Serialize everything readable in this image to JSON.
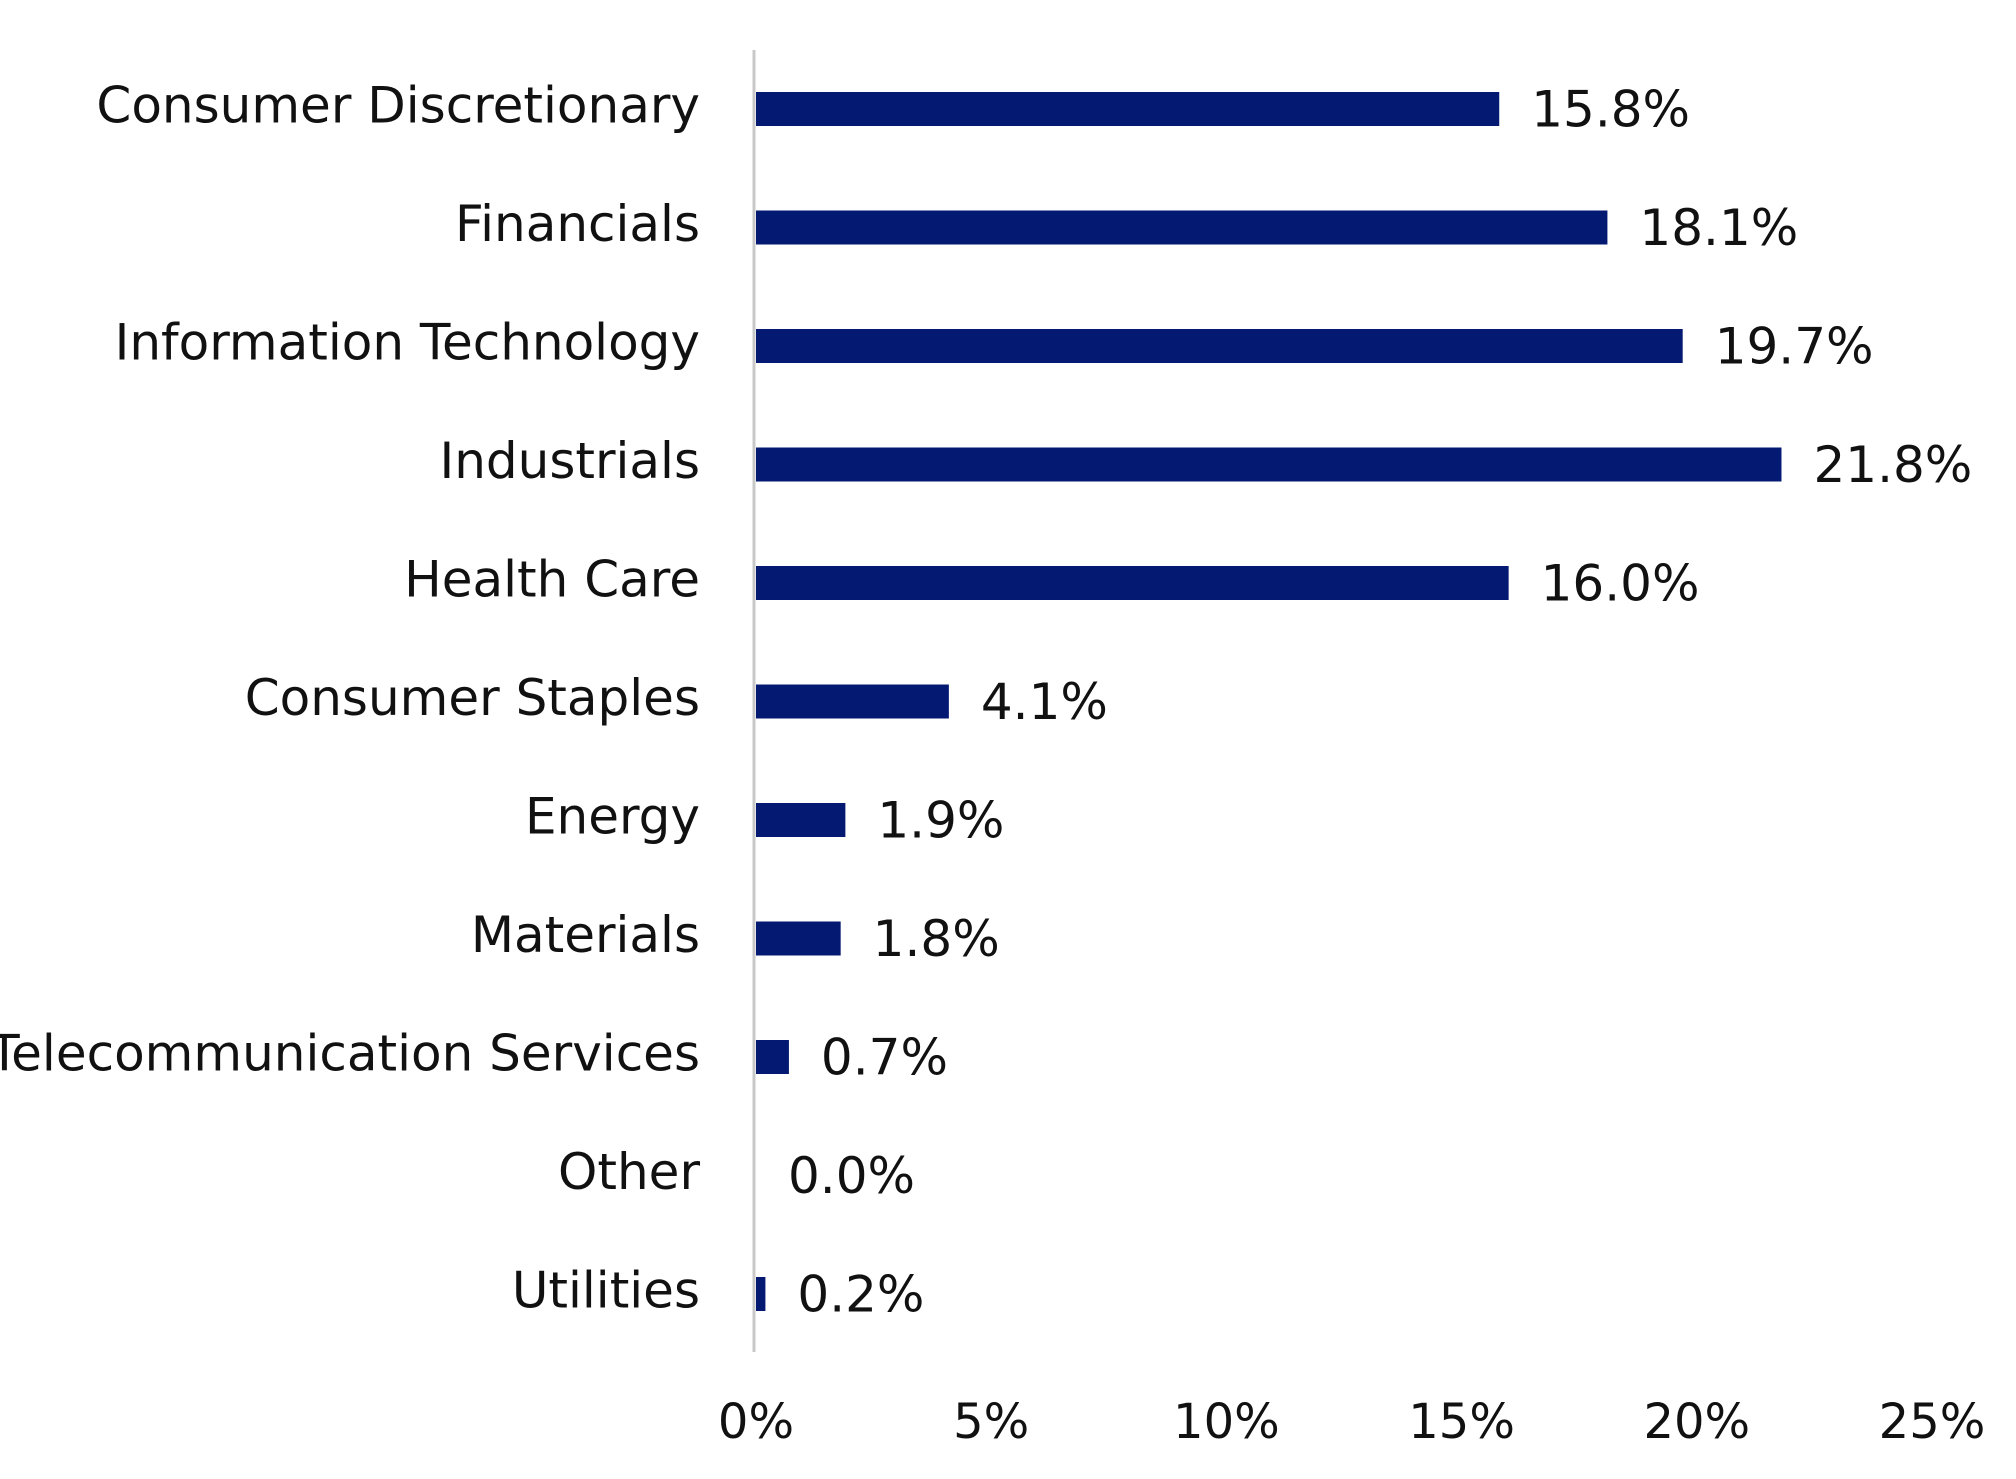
{
  "chart_data": {
    "type": "bar",
    "orientation": "horizontal",
    "title": "",
    "xlabel": "",
    "ylabel": "",
    "categories": [
      "Consumer Discretionary",
      "Financials",
      "Information Technology",
      "Industrials",
      "Health Care",
      "Consumer Staples",
      "Energy",
      "Materials",
      "Telecommunication Services",
      "Other",
      "Utilities"
    ],
    "values": [
      15.8,
      18.1,
      19.7,
      21.8,
      16.0,
      4.1,
      1.9,
      1.8,
      0.7,
      0.0,
      0.2
    ],
    "data_labels": [
      "15.8%",
      "18.1%",
      "19.7%",
      "21.8%",
      "16.0%",
      "4.1%",
      "1.9%",
      "1.8%",
      "0.7%",
      "0.0%",
      "0.2%"
    ],
    "xlim": [
      0,
      25
    ],
    "x_ticks": [
      0,
      5,
      10,
      15,
      20,
      25
    ],
    "x_tick_labels": [
      "0%",
      "5%",
      "10%",
      "15%",
      "20%",
      "25%"
    ],
    "grid": false,
    "legend": "none",
    "bar_color": "#041a72",
    "axis_color": "#c8c8c8"
  }
}
